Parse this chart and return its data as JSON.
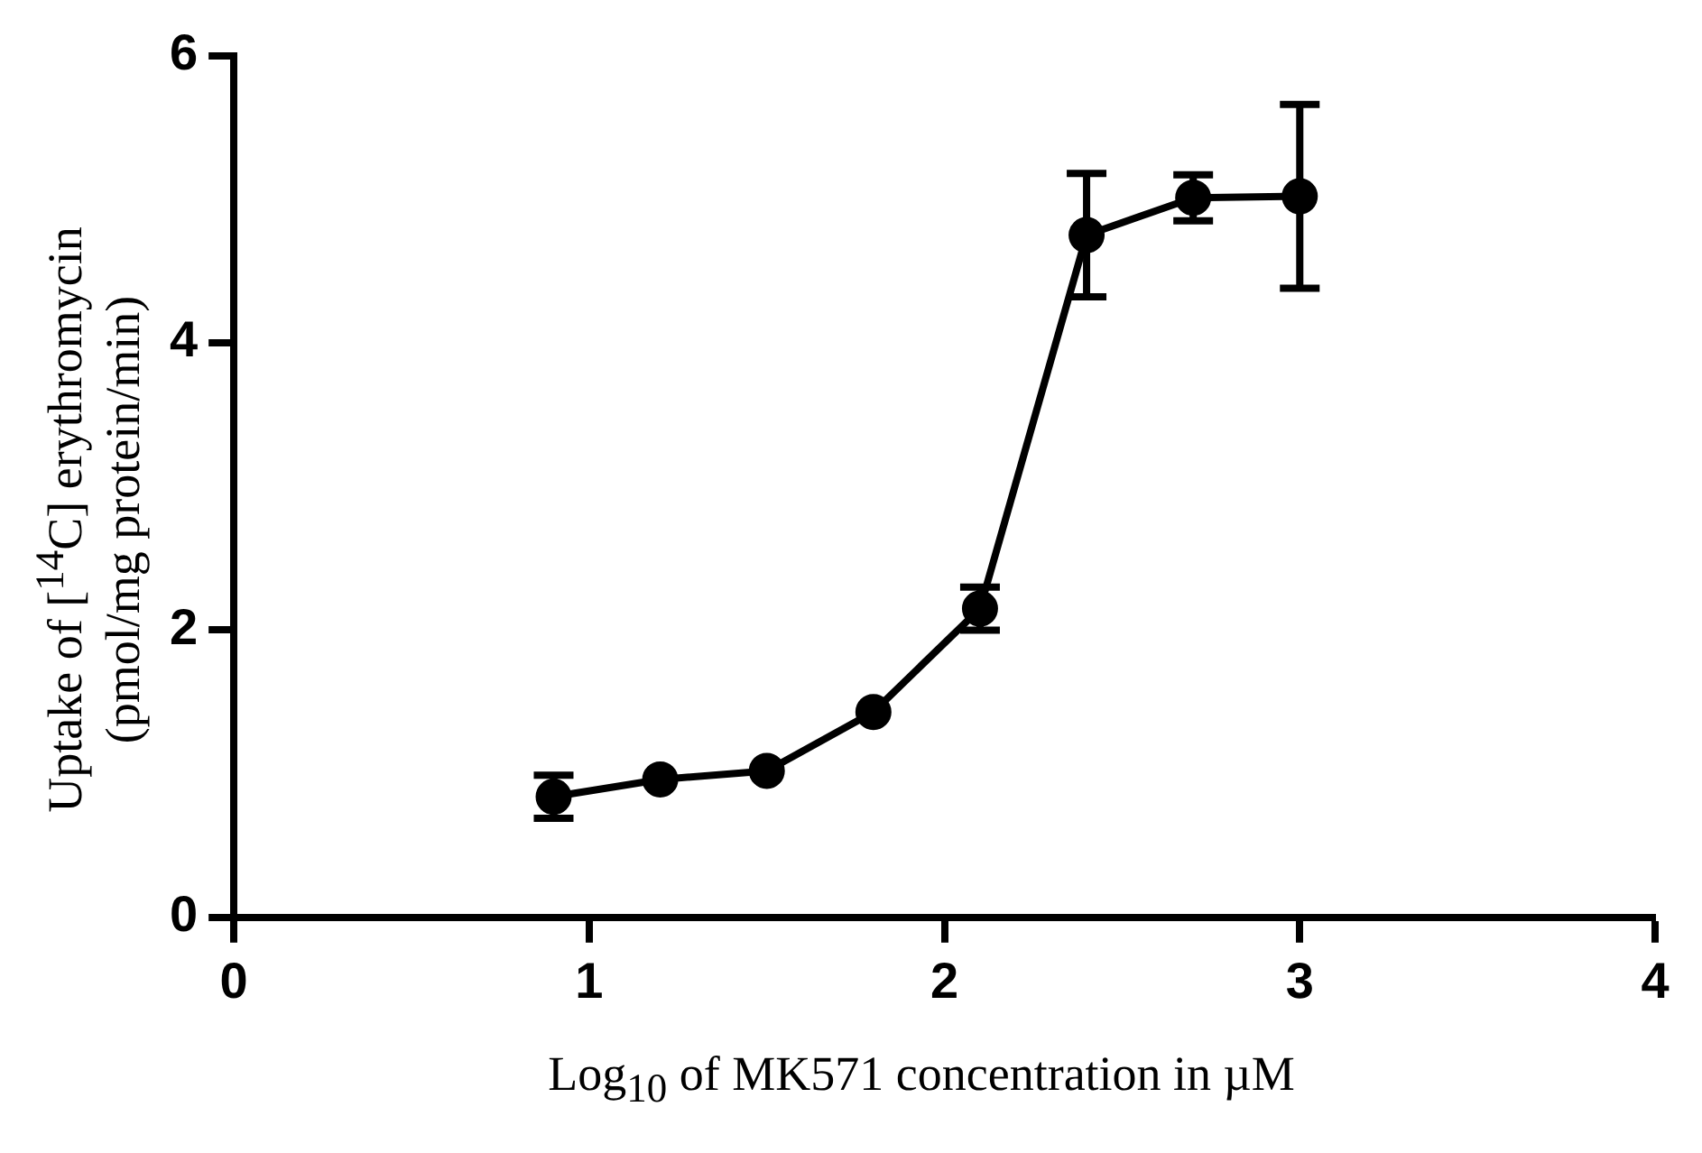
{
  "chart_data": {
    "type": "line",
    "xlabel": "Log$_{10}$ of MK571 concentration in µM",
    "ylabel": "Uptake of  [$^{14}$C] erythromycin\n(pmol/mg protein/min)",
    "x": [
      0.9,
      1.2,
      1.5,
      1.8,
      2.1,
      2.4,
      2.7,
      3.0
    ],
    "series": [
      {
        "color": "#000000",
        "values": [
          0.84,
          0.96,
          1.02,
          1.43,
          2.15,
          4.75,
          5.01,
          5.02
        ],
        "errors": [
          0.15,
          null,
          null,
          null,
          0.15,
          0.43,
          0.16,
          0.64
        ]
      }
    ],
    "xlim": [
      0,
      4
    ],
    "xticks": [
      0,
      1,
      2,
      3,
      4
    ],
    "ylim": [
      0,
      6
    ],
    "yticks": [
      0,
      2,
      4,
      6
    ],
    "grid": false,
    "legend": false,
    "marker": "circle",
    "line_style": "solid"
  }
}
